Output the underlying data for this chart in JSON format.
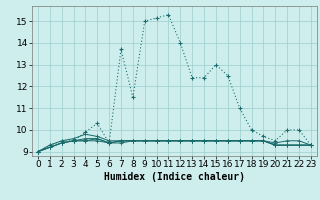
{
  "xlabel": "Humidex (Indice chaleur)",
  "bg_color": "#ceeeed",
  "grid_color": "#9ecece",
  "line_color": "#1a6b6b",
  "xlim": [
    -0.5,
    23.5
  ],
  "ylim": [
    8.8,
    15.7
  ],
  "yticks": [
    9,
    10,
    11,
    12,
    13,
    14,
    15
  ],
  "xticks": [
    0,
    1,
    2,
    3,
    4,
    5,
    6,
    7,
    8,
    9,
    10,
    11,
    12,
    13,
    14,
    15,
    16,
    17,
    18,
    19,
    20,
    21,
    22,
    23
  ],
  "series": [
    [
      9.0,
      9.3,
      9.5,
      9.5,
      9.9,
      10.3,
      9.4,
      13.7,
      11.5,
      15.0,
      15.15,
      15.3,
      14.0,
      12.4,
      12.4,
      13.0,
      12.5,
      11.0,
      10.0,
      9.7,
      9.5,
      10.0,
      10.0,
      9.3
    ],
    [
      9.0,
      9.3,
      9.5,
      9.6,
      9.8,
      9.7,
      9.5,
      9.5,
      9.5,
      9.5,
      9.5,
      9.5,
      9.5,
      9.5,
      9.5,
      9.5,
      9.5,
      9.5,
      9.5,
      9.5,
      9.4,
      9.5,
      9.5,
      9.3
    ],
    [
      9.0,
      9.2,
      9.4,
      9.5,
      9.6,
      9.6,
      9.4,
      9.5,
      9.5,
      9.5,
      9.5,
      9.5,
      9.5,
      9.5,
      9.5,
      9.5,
      9.5,
      9.5,
      9.5,
      9.5,
      9.3,
      9.3,
      9.3,
      9.3
    ],
    [
      9.0,
      9.2,
      9.4,
      9.5,
      9.5,
      9.6,
      9.4,
      9.5,
      9.5,
      9.5,
      9.5,
      9.5,
      9.5,
      9.5,
      9.5,
      9.5,
      9.5,
      9.5,
      9.5,
      9.5,
      9.3,
      9.3,
      9.3,
      9.3
    ],
    [
      9.0,
      9.2,
      9.4,
      9.5,
      9.5,
      9.5,
      9.4,
      9.4,
      9.5,
      9.5,
      9.5,
      9.5,
      9.5,
      9.5,
      9.5,
      9.5,
      9.5,
      9.5,
      9.5,
      9.5,
      9.3,
      9.3,
      9.3,
      9.3
    ]
  ],
  "xlabel_fontsize": 7,
  "tick_fontsize": 6.5
}
